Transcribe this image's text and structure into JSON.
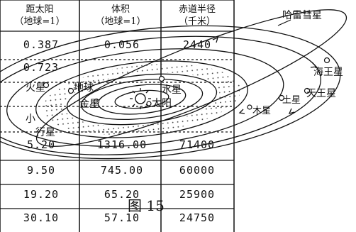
{
  "table": {
    "headers": [
      {
        "line1": "距太阳",
        "line2": "（地球=1）"
      },
      {
        "line1": "体积",
        "line2": "（地球=1）"
      },
      {
        "line1": "赤道半径",
        "line2": "（千米）"
      }
    ],
    "rows": [
      [
        "0.387",
        "0.056",
        "2440"
      ],
      [
        "0.723",
        "",
        ""
      ],
      [
        "",
        "",
        ""
      ],
      [
        "",
        "",
        ""
      ],
      [
        "5.20",
        "1316.00",
        "71400"
      ],
      [
        "9.50",
        "745.00",
        "60000"
      ],
      [
        "19.20",
        "65.20",
        "25900"
      ],
      [
        "30.10",
        "57.10",
        "24750"
      ]
    ]
  },
  "diagram": {
    "labels": {
      "halley": "哈雷彗星",
      "neptune": "海王星",
      "uranus": "天王星",
      "saturn": "土星",
      "jupiter": "木星",
      "mercury": "水星",
      "sun": "太阳",
      "venus": "金星",
      "earth": "地球",
      "mars": "火星",
      "asteroid_belt_partial": "小",
      "asteroid_belt_partial2": "行星"
    }
  },
  "figure_caption": "图 15"
}
